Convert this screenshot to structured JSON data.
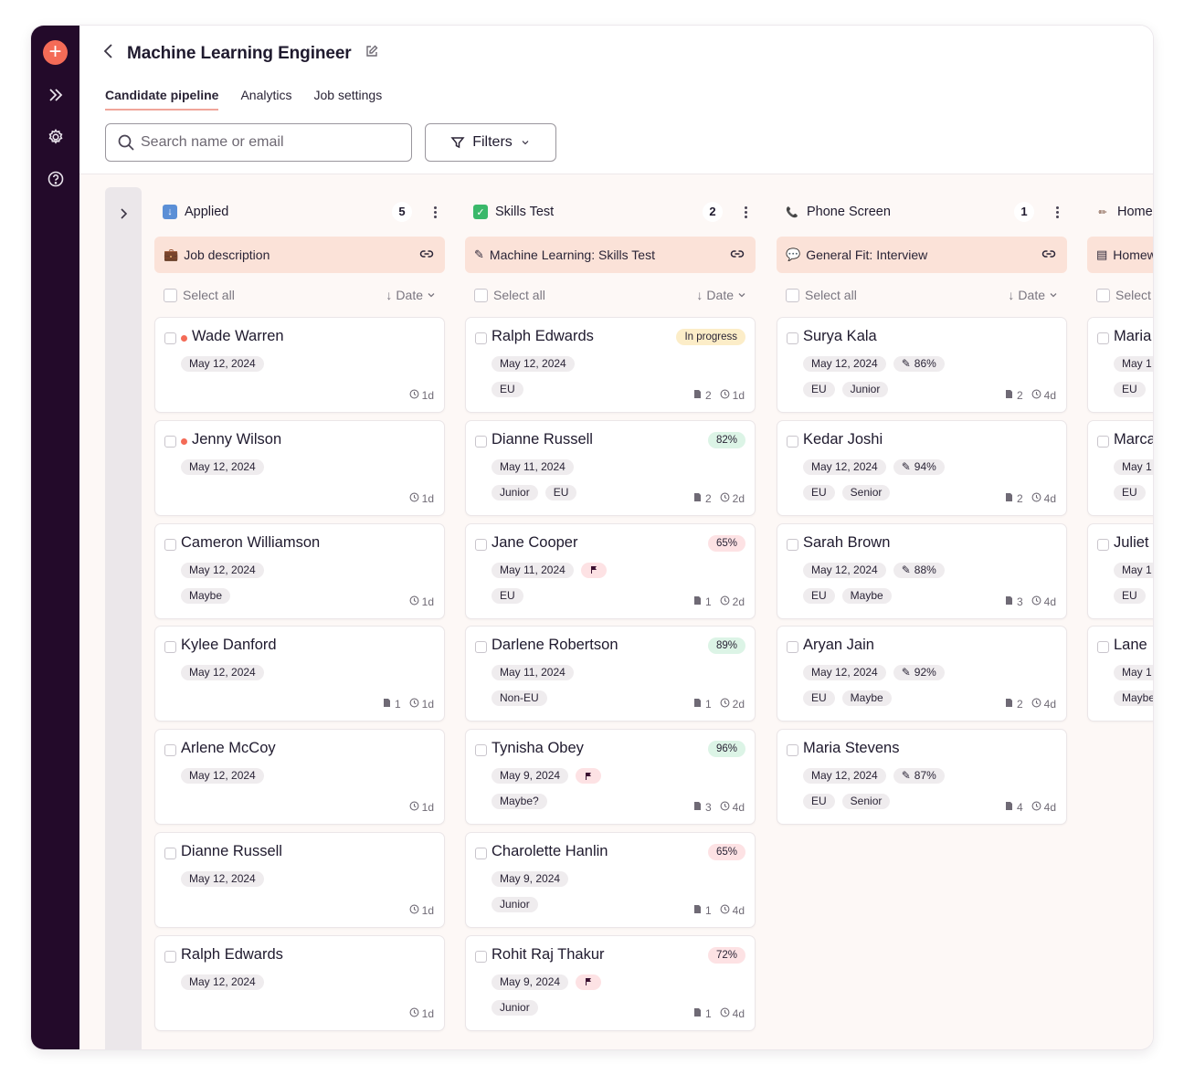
{
  "header": {
    "title": "Machine Learning Engineer"
  },
  "tabs": [
    "Candidate pipeline",
    "Analytics",
    "Job settings"
  ],
  "search": {
    "placeholder": "Search name or email"
  },
  "filters_label": "Filters",
  "common": {
    "select_all": "Select all",
    "sort_label": "Date"
  },
  "colors": {
    "accent": "#f46b57",
    "rail": "#230a2a",
    "link_bg": "#fbe2d8",
    "board_bg": "#fdf8f6"
  },
  "columns": [
    {
      "title": "Applied",
      "count": "5",
      "icon": "inbox-tray-icon",
      "link_label": "Job description",
      "link_icon": "briefcase-icon",
      "cards": [
        {
          "name": "Wade Warren",
          "dot": true,
          "tags1": [
            "May 12, 2024"
          ],
          "tags2": [],
          "status": "",
          "files": "",
          "age": "1d"
        },
        {
          "name": "Jenny Wilson",
          "dot": true,
          "tags1": [
            "May 12, 2024"
          ],
          "tags2": [],
          "status": "",
          "files": "",
          "age": "1d"
        },
        {
          "name": "Cameron Williamson",
          "dot": false,
          "tags1": [
            "May 12, 2024"
          ],
          "tags2": [
            "Maybe"
          ],
          "status": "",
          "files": "",
          "age": "1d"
        },
        {
          "name": "Kylee Danford",
          "dot": false,
          "tags1": [
            "May 12, 2024"
          ],
          "tags2": [],
          "status": "",
          "files": "1",
          "age": "1d"
        },
        {
          "name": "Arlene McCoy",
          "dot": false,
          "tags1": [
            "May 12, 2024"
          ],
          "tags2": [],
          "status": "",
          "files": "",
          "age": "1d"
        },
        {
          "name": "Dianne Russell",
          "dot": false,
          "tags1": [
            "May 12, 2024"
          ],
          "tags2": [],
          "status": "",
          "files": "",
          "age": "1d"
        },
        {
          "name": "Ralph Edwards",
          "dot": false,
          "tags1": [
            "May 12, 2024"
          ],
          "tags2": [],
          "status": "",
          "files": "",
          "age": "1d"
        }
      ]
    },
    {
      "title": "Skills Test",
      "count": "2",
      "icon": "check-box-icon",
      "link_label": "Machine Learning: Skills Test",
      "link_icon": "pencil-icon",
      "cards": [
        {
          "name": "Ralph Edwards",
          "tags1": [
            "May 12, 2024"
          ],
          "tags2": [
            "EU"
          ],
          "status": "In progress",
          "status_color": "yellow",
          "files": "2",
          "age": "1d"
        },
        {
          "name": "Dianne Russell",
          "tags1": [
            "May 11, 2024"
          ],
          "tags2": [
            "Junior",
            "EU"
          ],
          "status": "82%",
          "status_color": "green",
          "files": "2",
          "age": "2d"
        },
        {
          "name": "Jane Cooper",
          "tags1": [
            "May 11, 2024"
          ],
          "flag": true,
          "tags2": [
            "EU"
          ],
          "status": "65%",
          "status_color": "red",
          "files": "1",
          "age": "2d"
        },
        {
          "name": "Darlene Robertson",
          "tags1": [
            "May 11, 2024"
          ],
          "tags2": [
            "Non-EU"
          ],
          "status": "89%",
          "status_color": "green",
          "files": "1",
          "age": "2d"
        },
        {
          "name": "Tynisha Obey",
          "tags1": [
            "May 9, 2024"
          ],
          "flag": true,
          "tags2": [
            "Maybe?"
          ],
          "status": "96%",
          "status_color": "green",
          "files": "3",
          "age": "4d"
        },
        {
          "name": "Charolette Hanlin",
          "tags1": [
            "May 9, 2024"
          ],
          "tags2": [
            "Junior"
          ],
          "status": "65%",
          "status_color": "red",
          "files": "1",
          "age": "4d"
        },
        {
          "name": "Rohit Raj Thakur",
          "tags1": [
            "May 9, 2024"
          ],
          "flag": true,
          "tags2": [
            "Junior"
          ],
          "status": "72%",
          "status_color": "red",
          "files": "1",
          "age": "4d"
        }
      ]
    },
    {
      "title": "Phone Screen",
      "count": "1",
      "icon": "telephone-icon",
      "link_label": "General Fit: Interview",
      "link_icon": "speech-bubble-icon",
      "cards": [
        {
          "name": "Surya Kala",
          "tags1": [
            "May 12, 2024"
          ],
          "score": "86%",
          "tags2": [
            "EU",
            "Junior"
          ],
          "status": "",
          "files": "2",
          "age": "4d"
        },
        {
          "name": "Kedar Joshi",
          "tags1": [
            "May 12, 2024"
          ],
          "score": "94%",
          "tags2": [
            "EU",
            "Senior"
          ],
          "status": "",
          "files": "2",
          "age": "4d"
        },
        {
          "name": "Sarah Brown",
          "tags1": [
            "May 12, 2024"
          ],
          "score": "88%",
          "tags2": [
            "EU",
            "Maybe"
          ],
          "status": "",
          "files": "3",
          "age": "4d"
        },
        {
          "name": "Aryan Jain",
          "tags1": [
            "May 12, 2024"
          ],
          "score": "92%",
          "tags2": [
            "EU",
            "Maybe"
          ],
          "status": "",
          "files": "2",
          "age": "4d"
        },
        {
          "name": "Maria Stevens",
          "tags1": [
            "May 12, 2024"
          ],
          "score": "87%",
          "tags2": [
            "EU",
            "Senior"
          ],
          "status": "",
          "files": "4",
          "age": "4d"
        }
      ]
    },
    {
      "title": "Home",
      "count": "",
      "icon": "pencil-icon",
      "link_label": "Homew",
      "link_icon": "document-icon",
      "cards": [
        {
          "name": "Maria",
          "tags1": [
            "May 1"
          ],
          "tags2": [
            "EU"
          ],
          "status": "",
          "files": "",
          "age": ""
        },
        {
          "name": "Marca",
          "tags1": [
            "May 1"
          ],
          "tags2": [
            "EU"
          ],
          "status": "",
          "files": "",
          "age": ""
        },
        {
          "name": "Juliet",
          "tags1": [
            "May 1"
          ],
          "tags2": [
            "EU"
          ],
          "status": "",
          "files": "",
          "age": ""
        },
        {
          "name": "Lane",
          "tags1": [
            "May 1"
          ],
          "tags2": [
            "Maybe"
          ],
          "status": "",
          "files": "",
          "age": ""
        }
      ]
    }
  ]
}
